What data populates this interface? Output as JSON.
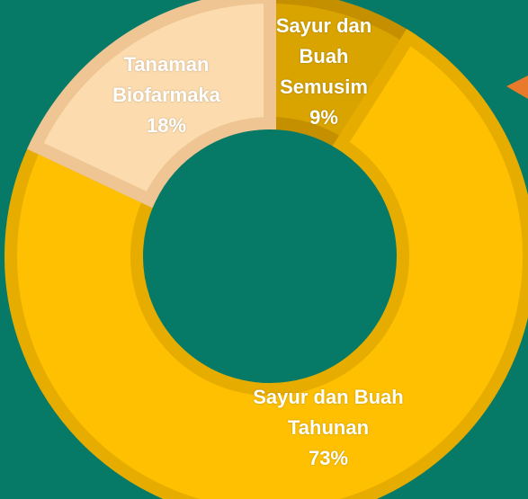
{
  "chart_data": {
    "type": "donut",
    "categories": [
      "Sayur dan Buah Semusim",
      "Sayur dan Buah Tahunan",
      "Tanaman Biofarmaka"
    ],
    "values": [
      9,
      73,
      18
    ],
    "value_labels": [
      "9%",
      "73%",
      "18%"
    ],
    "colors": [
      "#d9a400",
      "#fec000",
      "#fcdcae"
    ]
  }
}
